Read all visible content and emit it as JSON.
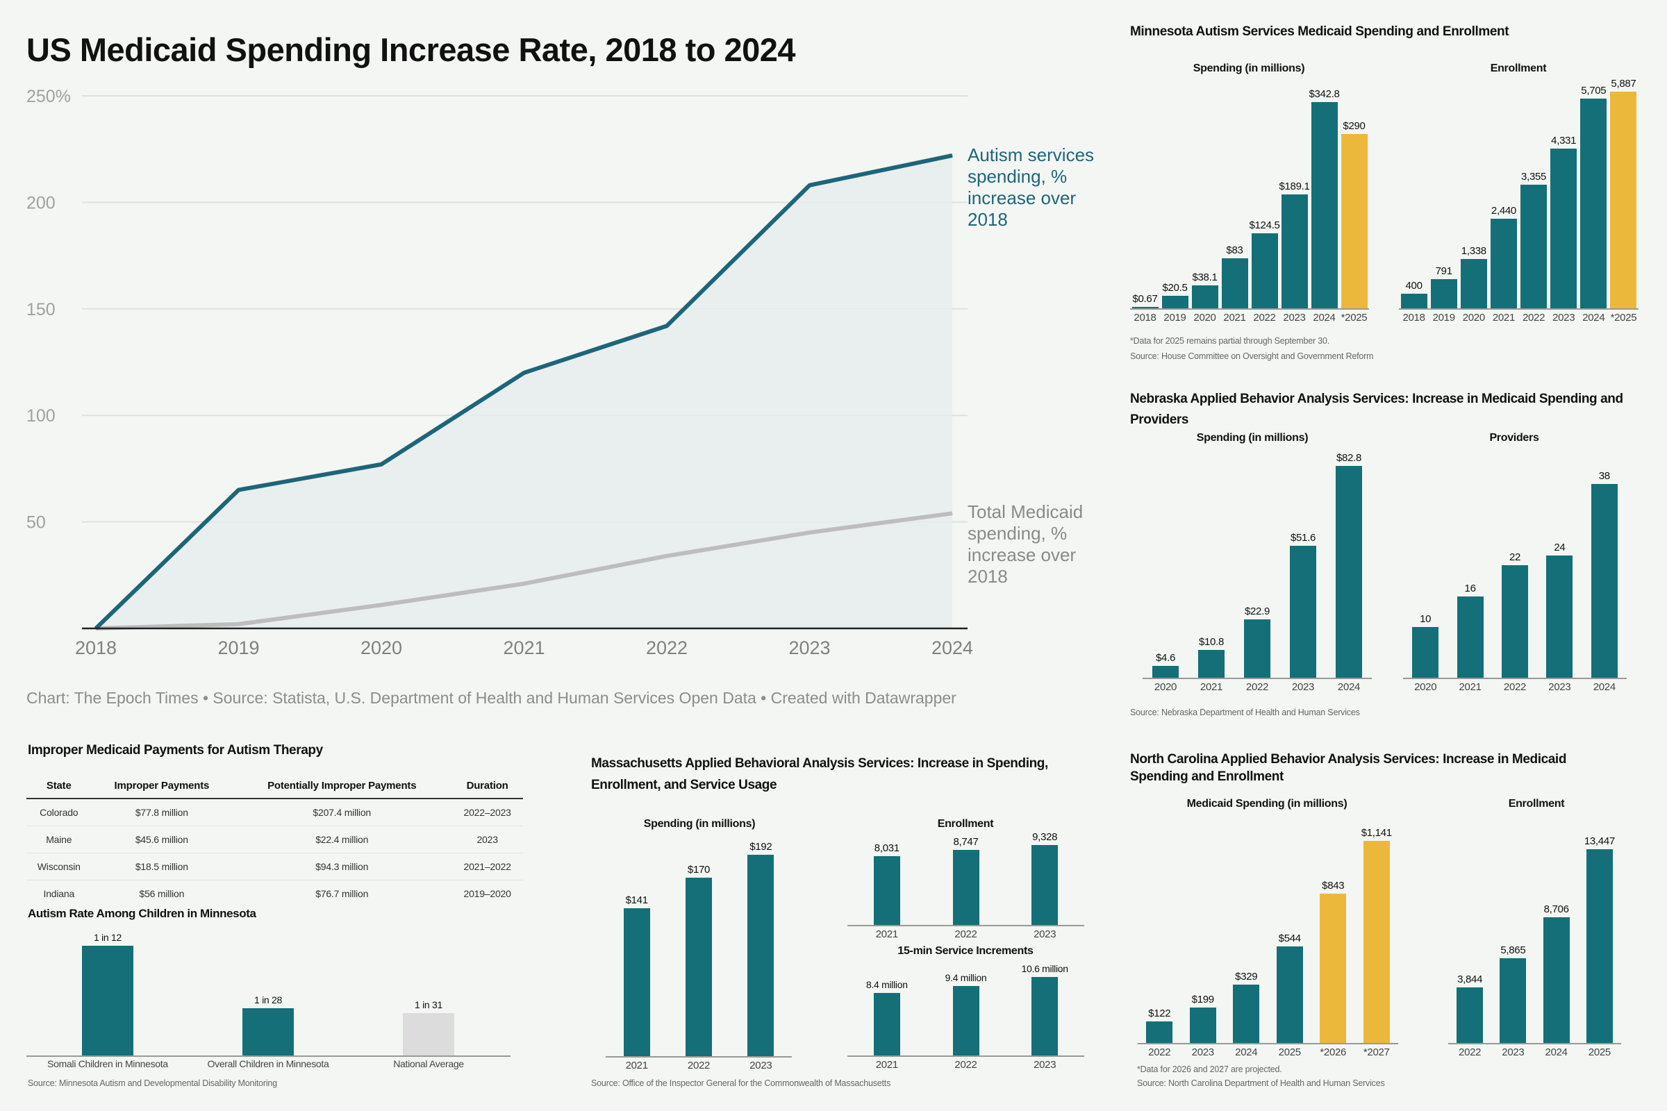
{
  "colors": {
    "teal": "#146f78",
    "gold": "#ecb83b",
    "gray_bar": "#dcdcdc",
    "autism_line": "#1e6579",
    "total_line": "#bdbdbd",
    "area_fill": "#e6ecec"
  },
  "main": {
    "title": "US Medicaid Spending Increase Rate, 2018 to 2024",
    "credit": "Chart: The Epoch Times • Source: Statista, U.S. Department of Health and Human Services Open Data • Created with Datawrapper"
  },
  "panels": {
    "minnesota": {
      "title": "Minnesota Autism Services Medicaid Spending and Enrollment",
      "footnote": "*Data for 2025 remains partial through September 30.",
      "source": "Source: House Committee on Oversight and Government Reform"
    },
    "nebraska": {
      "title_line1": "Nebraska Applied Behavior Analysis Services: Increase in Medicaid Spending and",
      "title_line2": "Providers",
      "source": "Source: Nebraska Department of Health and Human Services"
    },
    "massachusetts": {
      "title_line1": "Massachusetts Applied Behavioral Analysis Services: Increase in Spending,",
      "title_line2": "Enrollment, and Service Usage",
      "source": "Source: Office of the Inspector General for the Commonwealth of Massachusetts"
    },
    "north_carolina": {
      "title_line1": "North Carolina Applied Behavior Analysis Services: Increase in Medicaid",
      "title_line2": "Spending and Enrollment",
      "footnote": "*Data for 2026 and 2027 are projected.",
      "source": "Source: North Carolina Department of Health and Human Services"
    },
    "improper": {
      "title": "Improper Medicaid Payments for Autism Therapy"
    },
    "autism_rate": {
      "title": "Autism Rate Among Children in Minnesota",
      "source": "Source: Minnesota Autism and Developmental Disability Monitoring"
    }
  },
  "chart_data": [
    {
      "type": "line",
      "title": "US Medicaid Spending Increase Rate, 2018 to 2024",
      "x": [
        2018,
        2019,
        2020,
        2021,
        2022,
        2023,
        2024
      ],
      "ylim": [
        0,
        250
      ],
      "yticks": [
        "",
        "50",
        "100",
        "150",
        "200",
        "250%"
      ],
      "ytick_values": [
        0,
        50,
        100,
        150,
        200,
        250
      ],
      "grid": true,
      "series": [
        {
          "name": "Autism services spending, % increase over 2018",
          "values": [
            0,
            65,
            77,
            120,
            142,
            208,
            222
          ],
          "color": "#1e6579"
        },
        {
          "name": "Total Medicaid spending, % increase over 2018",
          "values": [
            0,
            2,
            11,
            21,
            34,
            45,
            54
          ],
          "color": "#bdbdbd"
        }
      ]
    },
    {
      "type": "bar",
      "title": "Spending (in millions)",
      "categories": [
        "2018",
        "2019",
        "2020",
        "2021",
        "2022",
        "2023",
        "2024",
        "*2025"
      ],
      "values": [
        0.67,
        20.5,
        38.1,
        83,
        124.5,
        189.1,
        342.8,
        290
      ],
      "labels": [
        "$0.67",
        "$20.5",
        "$38.1",
        "$83",
        "$124.5",
        "$189.1",
        "$342.8",
        "$290"
      ],
      "bar_colors": [
        "#146f78",
        "#146f78",
        "#146f78",
        "#146f78",
        "#146f78",
        "#146f78",
        "#146f78",
        "#ecb83b"
      ]
    },
    {
      "type": "bar",
      "title": "Enrollment",
      "categories": [
        "2018",
        "2019",
        "2020",
        "2021",
        "2022",
        "2023",
        "2024",
        "*2025"
      ],
      "values": [
        400,
        791,
        1338,
        2440,
        3355,
        4331,
        5705,
        5887
      ],
      "labels": [
        "400",
        "791",
        "1,338",
        "2,440",
        "3,355",
        "4,331",
        "5,705",
        "5,887"
      ],
      "bar_colors": [
        "#146f78",
        "#146f78",
        "#146f78",
        "#146f78",
        "#146f78",
        "#146f78",
        "#146f78",
        "#ecb83b"
      ]
    },
    {
      "type": "bar",
      "title": "Spending (in millions)",
      "categories": [
        "2020",
        "2021",
        "2022",
        "2023",
        "2024"
      ],
      "values": [
        4.6,
        10.8,
        22.9,
        51.6,
        82.8
      ],
      "labels": [
        "$4.6",
        "$10.8",
        "$22.9",
        "$51.6",
        "$82.8"
      ]
    },
    {
      "type": "bar",
      "title": "Providers",
      "categories": [
        "2020",
        "2021",
        "2022",
        "2023",
        "2024"
      ],
      "values": [
        10,
        16,
        22,
        24,
        38
      ],
      "labels": [
        "10",
        "16",
        "22",
        "24",
        "38"
      ]
    },
    {
      "type": "bar",
      "title": "Spending (in millions)",
      "categories": [
        "2021",
        "2022",
        "2023"
      ],
      "values": [
        141,
        170,
        192
      ],
      "labels": [
        "$141",
        "$170",
        "$192"
      ]
    },
    {
      "type": "bar",
      "title": "Enrollment",
      "categories": [
        "2021",
        "2022",
        "2023"
      ],
      "values": [
        8031,
        8747,
        9328
      ],
      "labels": [
        "8,031",
        "8,747",
        "9,328"
      ]
    },
    {
      "type": "bar",
      "title": "15-min Service Increments",
      "categories": [
        "2021",
        "2022",
        "2023"
      ],
      "values": [
        8.4,
        9.4,
        10.6
      ],
      "labels": [
        "8.4 million",
        "9.4 million",
        "10.6 million"
      ]
    },
    {
      "type": "bar",
      "title": "Medicaid Spending (in millions)",
      "categories": [
        "2022",
        "2023",
        "2024",
        "2025",
        "*2026",
        "*2027"
      ],
      "values": [
        122,
        199,
        329,
        544,
        843,
        1141
      ],
      "labels": [
        "$122",
        "$199",
        "$329",
        "$544",
        "$843",
        "$1,141"
      ],
      "bar_colors": [
        "#146f78",
        "#146f78",
        "#146f78",
        "#146f78",
        "#ecb83b",
        "#ecb83b"
      ]
    },
    {
      "type": "bar",
      "title": "Enrollment",
      "categories": [
        "2022",
        "2023",
        "2024",
        "2025"
      ],
      "values": [
        3844,
        5865,
        8706,
        13447
      ],
      "labels": [
        "3,844",
        "5,865",
        "8,706",
        "13,447"
      ]
    },
    {
      "type": "bar",
      "title": "Autism Rate Among Children in Minnesota",
      "categories": [
        "Somali Children in Minnesota",
        "Overall Children in Minnesota",
        "National Average"
      ],
      "values": [
        0.0833,
        0.0357,
        0.0323
      ],
      "labels": [
        "1 in 12",
        "1 in 28",
        "1 in 31"
      ],
      "bar_colors": [
        "#146f78",
        "#146f78",
        "#dcdcdc"
      ]
    },
    {
      "type": "table",
      "title": "Improper Medicaid Payments for Autism Therapy",
      "columns": [
        "State",
        "Improper Payments",
        "Potentially Improper Payments",
        "Duration"
      ],
      "rows": [
        [
          "Colorado",
          "$77.8 million",
          "$207.4 million",
          "2022–2023"
        ],
        [
          "Maine",
          "$45.6 million",
          "$22.4 million",
          "2023"
        ],
        [
          "Wisconsin",
          "$18.5 million",
          "$94.3 million",
          "2021–2022"
        ],
        [
          "Indiana",
          "$56 million",
          "$76.7 million",
          "2019–2020"
        ]
      ]
    }
  ]
}
